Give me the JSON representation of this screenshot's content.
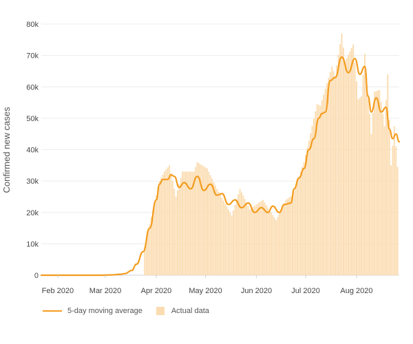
{
  "chart_data": {
    "type": "bar",
    "ylabel": "Confirmed new cases",
    "xlabel": "",
    "ylim": [
      0,
      80000
    ],
    "yticks": [
      0,
      10000,
      20000,
      30000,
      40000,
      50000,
      60000,
      70000,
      80000
    ],
    "ytick_labels": [
      "0",
      "10k",
      "20k",
      "30k",
      "40k",
      "50k",
      "60k",
      "70k",
      "80k"
    ],
    "x_range": [
      "2020-01-22",
      "2020-08-27"
    ],
    "xticks": [
      "2020-02-01",
      "2020-03-01",
      "2020-04-01",
      "2020-05-01",
      "2020-06-01",
      "2020-07-01",
      "2020-08-01"
    ],
    "xtick_labels": [
      "Feb 2020",
      "Mar 2020",
      "Apr 2020",
      "May 2020",
      "Jun 2020",
      "Jul 2020",
      "Aug 2020"
    ],
    "grid": "horizontal",
    "legend_position": "bottom-left",
    "colors": {
      "line": "#f39c1f",
      "bars": "#fbdcb0",
      "grid": "#ececec"
    },
    "series": [
      {
        "name": "5-day moving average",
        "type": "line",
        "points": [
          [
            "2020-01-22",
            0
          ],
          [
            "2020-02-29",
            0
          ],
          [
            "2020-03-05",
            100
          ],
          [
            "2020-03-10",
            300
          ],
          [
            "2020-03-13",
            500
          ],
          [
            "2020-03-17",
            1500
          ],
          [
            "2020-03-20",
            3500
          ],
          [
            "2020-03-24",
            7500
          ],
          [
            "2020-03-28",
            15000
          ],
          [
            "2020-04-01",
            24000
          ],
          [
            "2020-04-03",
            29000
          ],
          [
            "2020-04-05",
            30500
          ],
          [
            "2020-04-08",
            30500
          ],
          [
            "2020-04-10",
            32000
          ],
          [
            "2020-04-12",
            31500
          ],
          [
            "2020-04-15",
            28000
          ],
          [
            "2020-04-18",
            29500
          ],
          [
            "2020-04-22",
            27500
          ],
          [
            "2020-04-26",
            31500
          ],
          [
            "2020-04-30",
            27000
          ],
          [
            "2020-05-04",
            29000
          ],
          [
            "2020-05-08",
            25500
          ],
          [
            "2020-05-11",
            26000
          ],
          [
            "2020-05-15",
            22500
          ],
          [
            "2020-05-19",
            24000
          ],
          [
            "2020-05-23",
            21500
          ],
          [
            "2020-05-27",
            23000
          ],
          [
            "2020-05-31",
            20000
          ],
          [
            "2020-06-04",
            21500
          ],
          [
            "2020-06-08",
            20000
          ],
          [
            "2020-06-11",
            22000
          ],
          [
            "2020-06-15",
            20000
          ],
          [
            "2020-06-18",
            22500
          ],
          [
            "2020-06-22",
            23000
          ],
          [
            "2020-06-24",
            27500
          ],
          [
            "2020-06-27",
            31000
          ],
          [
            "2020-06-30",
            34000
          ],
          [
            "2020-07-03",
            40000
          ],
          [
            "2020-07-06",
            43500
          ],
          [
            "2020-07-09",
            50000
          ],
          [
            "2020-07-11",
            51500
          ],
          [
            "2020-07-13",
            52000
          ],
          [
            "2020-07-16",
            62000
          ],
          [
            "2020-07-19",
            63000
          ],
          [
            "2020-07-23",
            69500
          ],
          [
            "2020-07-27",
            64500
          ],
          [
            "2020-07-31",
            69000
          ],
          [
            "2020-08-03",
            64000
          ],
          [
            "2020-08-06",
            66500
          ],
          [
            "2020-08-08",
            57000
          ],
          [
            "2020-08-10",
            52000
          ],
          [
            "2020-08-13",
            56500
          ],
          [
            "2020-08-16",
            52000
          ],
          [
            "2020-08-19",
            53500
          ],
          [
            "2020-08-21",
            46500
          ],
          [
            "2020-08-23",
            43500
          ],
          [
            "2020-08-25",
            45000
          ],
          [
            "2020-08-27",
            42500
          ]
        ]
      },
      {
        "name": "Actual data",
        "type": "bar",
        "points": [
          [
            "2020-03-25",
            9000
          ],
          [
            "2020-03-29",
            18500
          ],
          [
            "2020-04-03",
            30000
          ],
          [
            "2020-04-06",
            33000
          ],
          [
            "2020-04-09",
            35000
          ],
          [
            "2020-04-13",
            25000
          ],
          [
            "2020-04-17",
            33000
          ],
          [
            "2020-04-24",
            33000
          ],
          [
            "2020-04-26",
            36000
          ],
          [
            "2020-05-02",
            34000
          ],
          [
            "2020-05-08",
            27500
          ],
          [
            "2020-05-17",
            19000
          ],
          [
            "2020-05-22",
            27500
          ],
          [
            "2020-05-28",
            21000
          ],
          [
            "2020-06-05",
            24000
          ],
          [
            "2020-06-13",
            17500
          ],
          [
            "2020-06-19",
            24000
          ],
          [
            "2020-06-23",
            25500
          ],
          [
            "2020-06-30",
            36000
          ],
          [
            "2020-07-08",
            54500
          ],
          [
            "2020-07-10",
            54000
          ],
          [
            "2020-07-17",
            66500
          ],
          [
            "2020-07-19",
            63500
          ],
          [
            "2020-07-23",
            77000
          ],
          [
            "2020-07-25",
            68000
          ],
          [
            "2020-07-30",
            73500
          ],
          [
            "2020-08-02",
            56000
          ],
          [
            "2020-08-04",
            57000
          ],
          [
            "2020-08-06",
            70500
          ],
          [
            "2020-08-10",
            45000
          ],
          [
            "2020-08-12",
            58500
          ],
          [
            "2020-08-15",
            59000
          ],
          [
            "2020-08-18",
            47500
          ],
          [
            "2020-08-20",
            64000
          ],
          [
            "2020-08-22",
            35000
          ],
          [
            "2020-08-24",
            47500
          ],
          [
            "2020-08-26",
            34500
          ]
        ]
      }
    ]
  }
}
